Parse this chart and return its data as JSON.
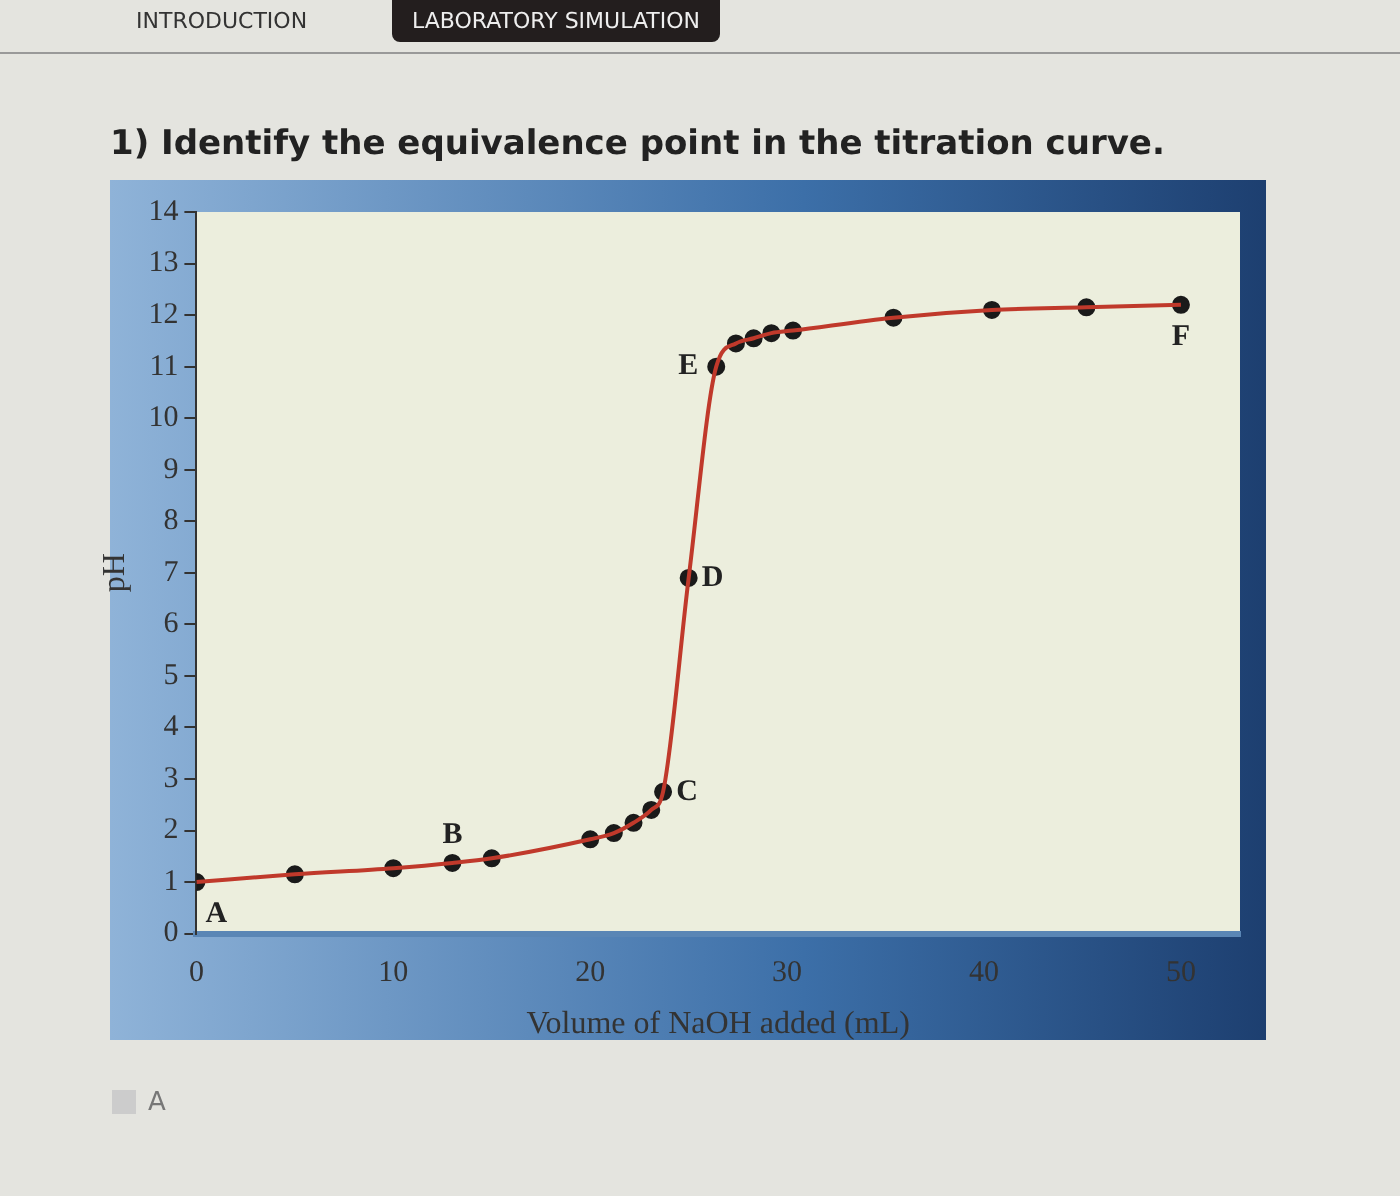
{
  "chart_data": {
    "type": "line",
    "title": "1) Identify the equivalence point in the titration curve.",
    "xlabel": "Volume of NaOH added (mL)",
    "ylabel": "pH",
    "x": [
      0,
      5,
      10,
      13,
      15,
      20,
      21.2,
      22.2,
      23.1,
      23.7,
      25,
      26.4,
      27.4,
      28.3,
      29.2,
      30.3,
      35.4,
      40.4,
      45.2,
      50
    ],
    "series": [
      {
        "color": "#c0392b",
        "marker": "none",
        "values": [
          1.0,
          1.15,
          1.27,
          1.37,
          1.46,
          1.83,
          1.95,
          2.15,
          2.4,
          2.75,
          6.9,
          11.0,
          11.45,
          11.55,
          11.65,
          11.7,
          11.95,
          12.1,
          12.15,
          12.2
        ]
      },
      {
        "type": "scatter",
        "color": "#1a1a1a",
        "values": [
          1.0,
          1.15,
          1.27,
          1.37,
          1.46,
          1.83,
          1.95,
          2.15,
          2.4,
          2.75,
          6.9,
          11.0,
          11.45,
          11.55,
          11.65,
          11.7,
          11.95,
          12.1,
          12.15,
          12.2
        ]
      }
    ],
    "xlim": [
      0,
      53
    ],
    "ylim": [
      0,
      14
    ],
    "xticks": [
      0,
      10,
      20,
      30,
      40,
      50
    ],
    "yticks": [
      0,
      1,
      2,
      3,
      4,
      5,
      6,
      7,
      8,
      9,
      10,
      11,
      12,
      13,
      14
    ],
    "grid": false,
    "legend": false,
    "marker": "circle",
    "line_style": "solid",
    "annotations": [
      {
        "text": "A",
        "x": 0,
        "y": 1.0
      },
      {
        "text": "B",
        "x": 13,
        "y": 1.37
      },
      {
        "text": "C",
        "x": 23.7,
        "y": 2.75
      },
      {
        "text": "D",
        "x": 25,
        "y": 6.9
      },
      {
        "text": "E",
        "x": 26.4,
        "y": 11.0
      },
      {
        "text": "F",
        "x": 50,
        "y": 12.2
      },
      "INTRODUCTION",
      "LABORATORY SIMULATION",
      "A"
    ]
  }
}
